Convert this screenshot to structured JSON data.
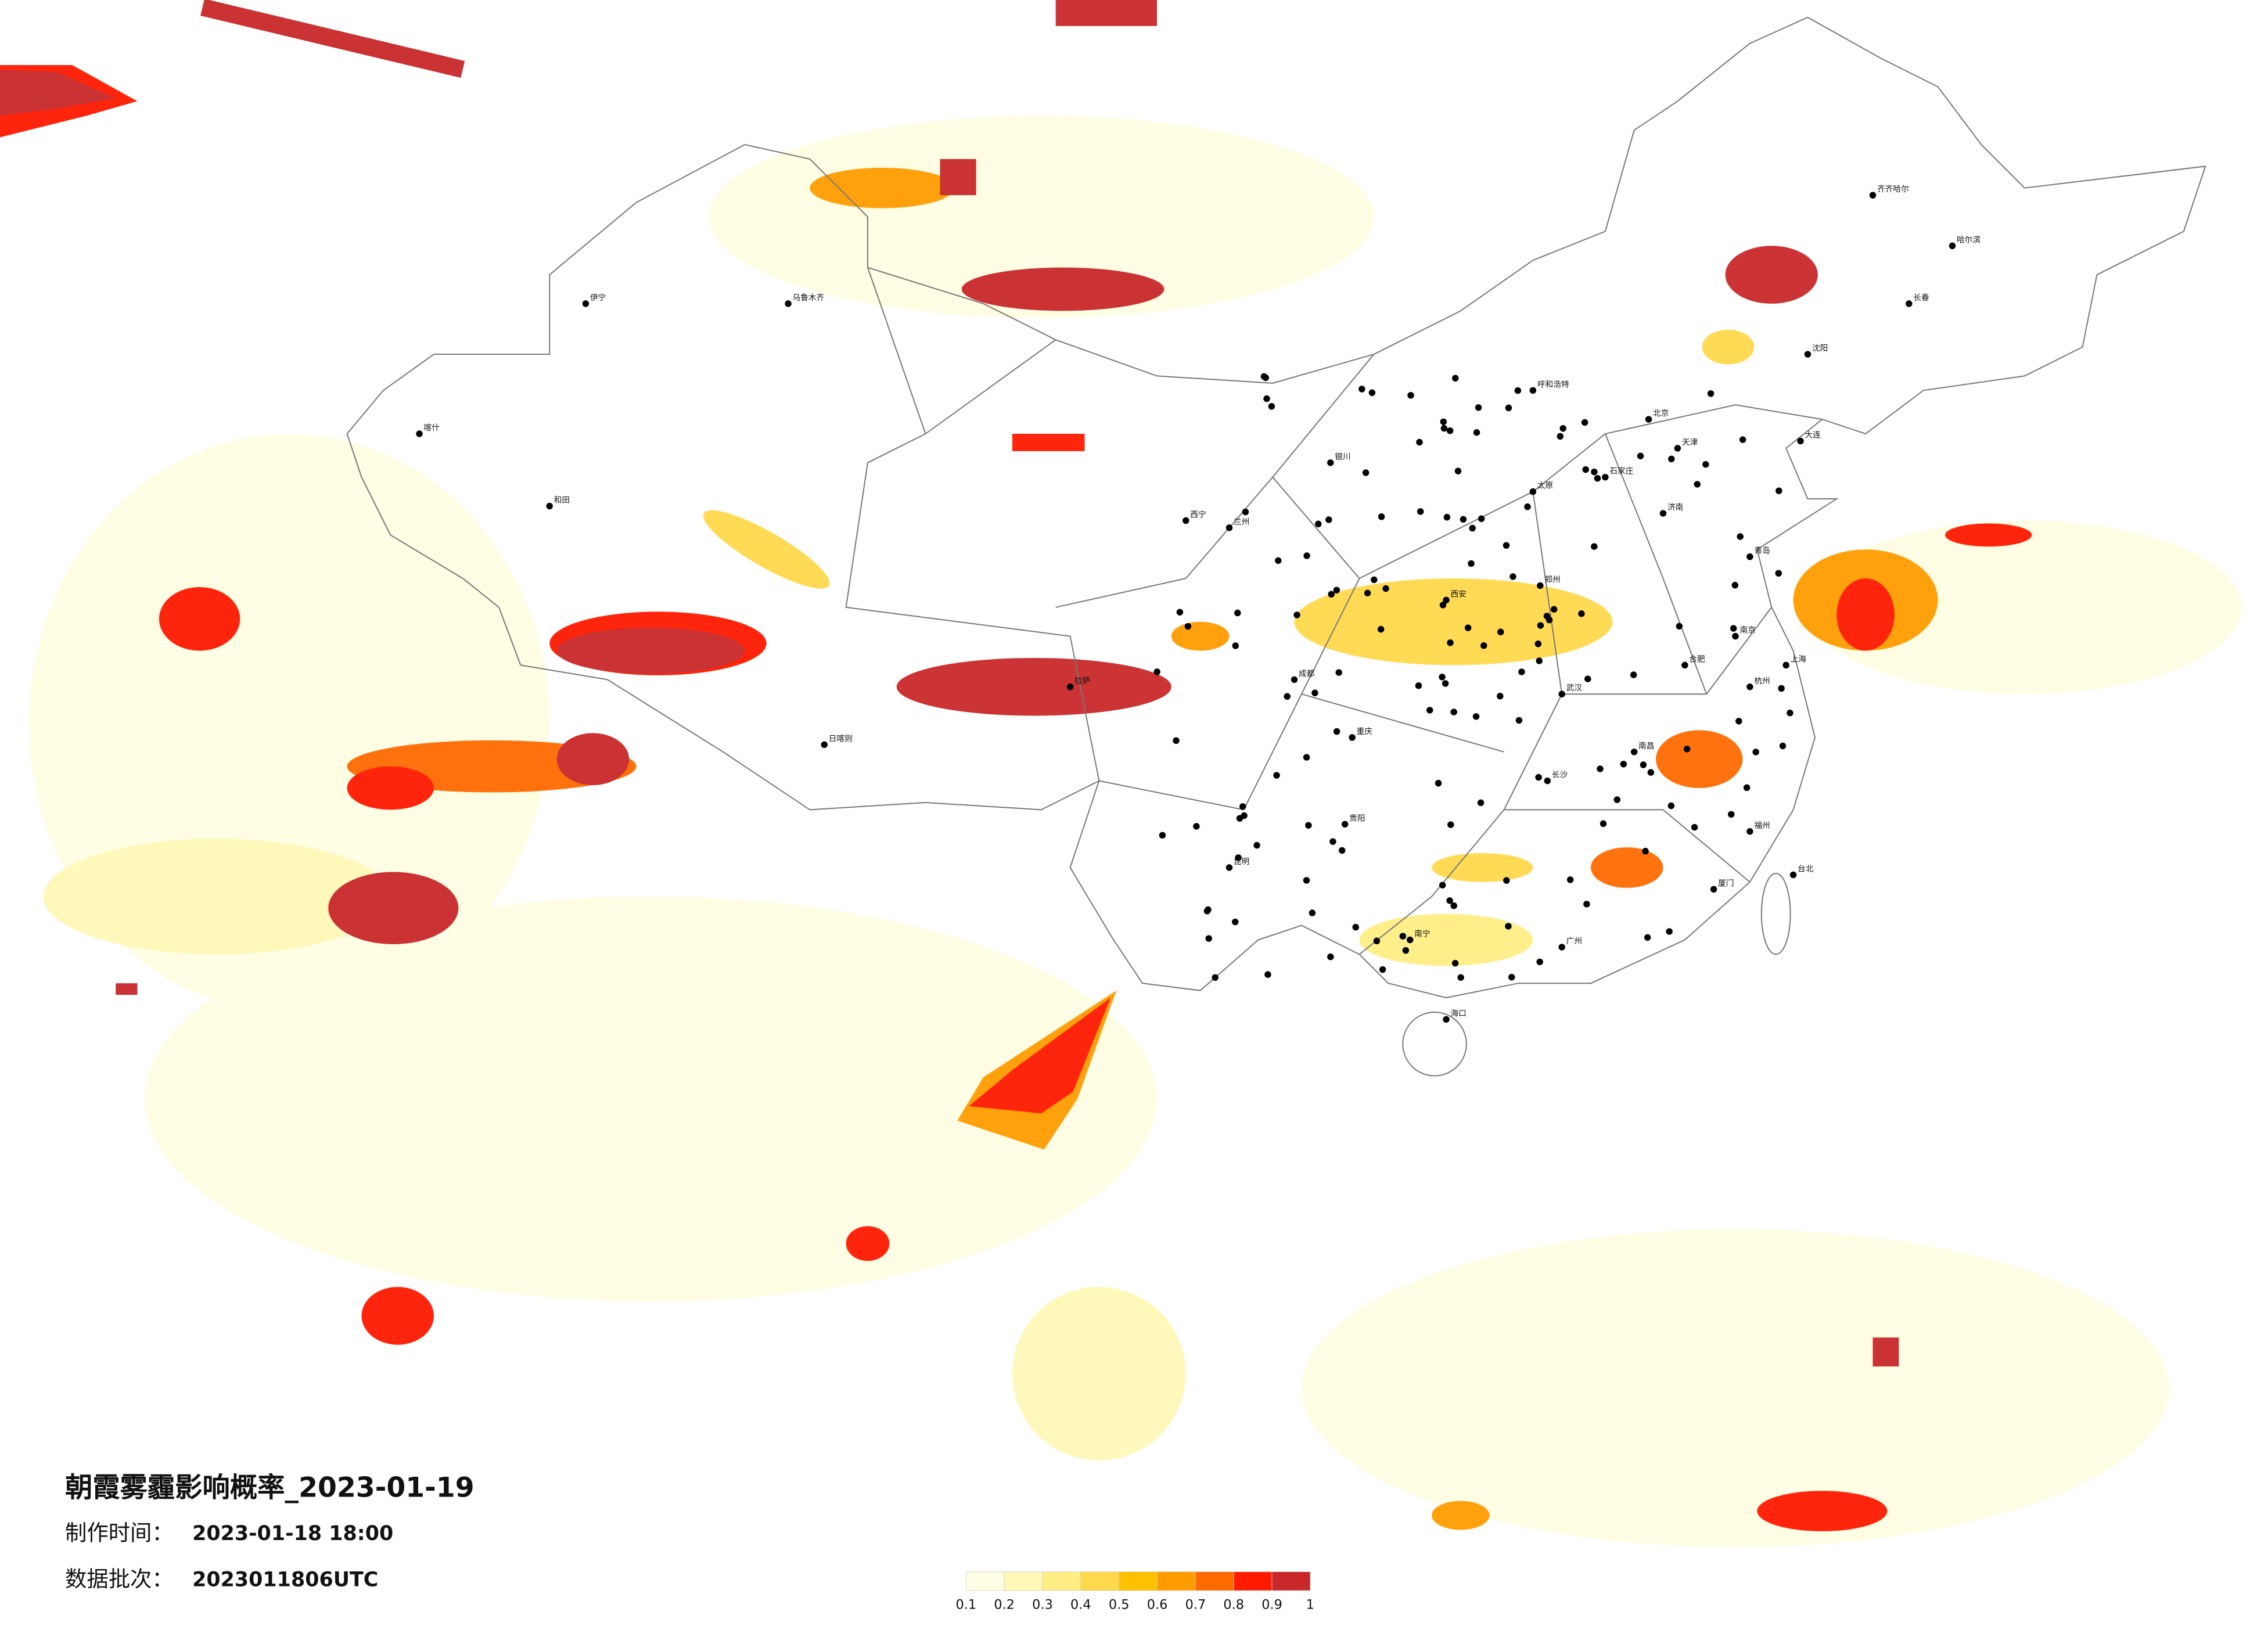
{
  "title": "朝霞雾霾影响概率_2023-01-19",
  "made_time": {
    "label": "制作时间：",
    "value": "2023-01-18 18:00"
  },
  "batch": {
    "label": "数据批次：",
    "value": "2023011806UTC"
  },
  "legend": {
    "ticks": [
      0.1,
      0.2,
      0.3,
      0.4,
      0.5,
      0.6,
      0.7,
      0.8,
      0.9,
      1
    ],
    "colors": [
      "#fffde3",
      "#fff8b8",
      "#ffee84",
      "#ffd94c",
      "#ffc000",
      "#ff9c00",
      "#ff6a00",
      "#ff1a00",
      "#c8282a"
    ]
  },
  "cities": [
    "北京",
    "天津",
    "上海",
    "广州",
    "重庆",
    "成都",
    "西安",
    "武汉",
    "长沙",
    "南京",
    "杭州",
    "郑州",
    "沈阳",
    "长春",
    "哈尔滨",
    "乌鲁木齐",
    "拉萨",
    "昆明",
    "贵阳",
    "南宁",
    "兰州",
    "西宁",
    "银川",
    "呼和浩特",
    "太原",
    "石家庄",
    "济南",
    "合肥",
    "南昌",
    "福州",
    "海口",
    "台北",
    "喀什",
    "和田",
    "伊宁",
    "日喀则",
    "齐齐哈尔",
    "大连",
    "青岛",
    "厦门"
  ]
}
